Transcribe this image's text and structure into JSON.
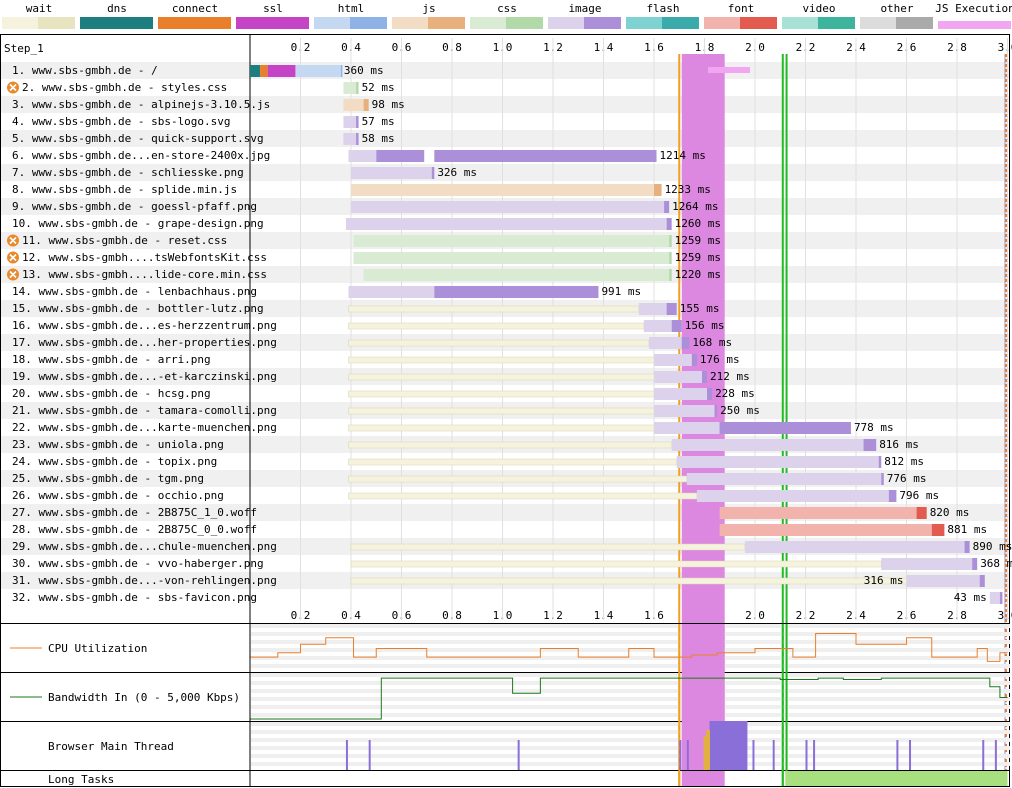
{
  "chart_data": {
    "type": "waterfall",
    "step_label": "Step_1",
    "axis": {
      "min": 0,
      "max": 3.0,
      "ticks": [
        0.2,
        0.4,
        0.6,
        0.8,
        1.0,
        1.2,
        1.4,
        1.6,
        1.8,
        2.0,
        2.2,
        2.4,
        2.6,
        2.8,
        3.0
      ],
      "tick_labels": [
        "0.2",
        "0.4",
        "0.6",
        "0.8",
        "1.0",
        "1.2",
        "1.4",
        "1.6",
        "1.8",
        "2.0",
        "2.2",
        "2.4",
        "2.6",
        "2.8",
        "3.0"
      ]
    },
    "legend": [
      {
        "label": "wait",
        "light": "#f5f3dd",
        "dark": "#e8e4c0"
      },
      {
        "label": "dns",
        "light": "#1d7e80",
        "dark": "#1d7e80"
      },
      {
        "label": "connect",
        "light": "#e97f2a",
        "dark": "#e97f2a"
      },
      {
        "label": "ssl",
        "light": "#c544c5",
        "dark": "#c544c5"
      },
      {
        "label": "html",
        "light": "#c5d8f2",
        "dark": "#8fb2e6"
      },
      {
        "label": "js",
        "light": "#f2dcc4",
        "dark": "#e7b07c"
      },
      {
        "label": "css",
        "light": "#d9ebd3",
        "dark": "#b2d9a8"
      },
      {
        "label": "image",
        "light": "#dcd2ec",
        "dark": "#ab8fd8"
      },
      {
        "label": "flash",
        "light": "#7ed2d2",
        "dark": "#3aaaaa"
      },
      {
        "label": "font",
        "light": "#f2b3ad",
        "dark": "#e35a4e"
      },
      {
        "label": "video",
        "light": "#a8e2d6",
        "dark": "#3db59d"
      },
      {
        "label": "other",
        "light": "#dcdcdc",
        "dark": "#aaaaaa"
      },
      {
        "label": "JS Execution",
        "light": "#f2a6f2",
        "dark": "#f2a6f2"
      }
    ],
    "markers": {
      "js_execution_block": [
        1.71,
        1.88
      ],
      "first_paint": 1.7,
      "dom_content_loaded": [
        2.11,
        2.125
      ],
      "onload": 2.99
    },
    "requests": [
      {
        "label": "1. www.sbs-gmbh.de - /",
        "type": "html",
        "start": 0.0,
        "ttfb": 0.36,
        "end": 0.36,
        "time": "360 ms",
        "blocking": false,
        "pre": [
          [
            "dns",
            0.0,
            0.04
          ],
          [
            "connect",
            0.04,
            0.07
          ],
          [
            "ssl",
            0.07,
            0.18
          ]
        ]
      },
      {
        "label": "2. www.sbs-gmbh.de - styles.css",
        "type": "css",
        "start": 0.37,
        "ttfb": 0.42,
        "end": 0.43,
        "time": "52 ms",
        "blocking": true
      },
      {
        "label": "3. www.sbs-gmbh.de - alpinejs-3.10.5.js",
        "type": "js",
        "start": 0.37,
        "ttfb": 0.45,
        "end": 0.47,
        "time": "98 ms",
        "blocking": false
      },
      {
        "label": "4. www.sbs-gmbh.de - sbs-logo.svg",
        "type": "image",
        "start": 0.37,
        "ttfb": 0.42,
        "end": 0.43,
        "time": "57 ms",
        "blocking": false
      },
      {
        "label": "5. www.sbs-gmbh.de - quick-support.svg",
        "type": "image",
        "start": 0.37,
        "ttfb": 0.42,
        "end": 0.43,
        "time": "58 ms",
        "blocking": false
      },
      {
        "label": "6. www.sbs-gmbh.de...en-store-2400x.jpg",
        "type": "image",
        "start": 0.39,
        "ttfb": 0.5,
        "end": 1.61,
        "time": "1214 ms",
        "blocking": false,
        "chunks": [
          [
            0.5,
            0.69
          ],
          [
            0.73,
            1.61
          ]
        ]
      },
      {
        "label": "7. www.sbs-gmbh.de - schliesske.png",
        "type": "image",
        "start": 0.4,
        "ttfb": 0.72,
        "end": 0.73,
        "time": "326 ms",
        "blocking": false
      },
      {
        "label": "8. www.sbs-gmbh.de - splide.min.js",
        "type": "js",
        "start": 0.4,
        "ttfb": 1.6,
        "end": 1.63,
        "time": "1233 ms",
        "blocking": false
      },
      {
        "label": "9. www.sbs-gmbh.de - goessl-pfaff.png",
        "type": "image",
        "start": 0.4,
        "ttfb": 1.64,
        "end": 1.66,
        "time": "1264 ms",
        "blocking": false
      },
      {
        "label": "10. www.sbs-gmbh.de - grape-design.png",
        "type": "image",
        "start": 0.38,
        "ttfb": 1.65,
        "end": 1.67,
        "time": "1260 ms",
        "blocking": false
      },
      {
        "label": "11. www.sbs-gmbh.de - reset.css",
        "type": "css",
        "start": 0.41,
        "ttfb": 1.66,
        "end": 1.67,
        "time": "1259 ms",
        "blocking": true
      },
      {
        "label": "12. www.sbs-gmbh....tsWebfontsKit.css",
        "type": "css",
        "start": 0.41,
        "ttfb": 1.66,
        "end": 1.67,
        "time": "1259 ms",
        "blocking": true
      },
      {
        "label": "13. www.sbs-gmbh....lide-core.min.css",
        "type": "css",
        "start": 0.45,
        "ttfb": 1.66,
        "end": 1.67,
        "time": "1220 ms",
        "blocking": true
      },
      {
        "label": "14. www.sbs-gmbh.de - lenbachhaus.png",
        "type": "image",
        "start": 0.39,
        "ttfb": 0.73,
        "end": 1.38,
        "time": "991 ms",
        "blocking": false
      },
      {
        "label": "15. www.sbs-gmbh.de - bottler-lutz.png",
        "type": "image",
        "start": 0.39,
        "ttfb": 1.65,
        "end": 1.69,
        "time": "155 ms",
        "blocking": false,
        "wait_from": 1.54
      },
      {
        "label": "16. www.sbs-gmbh.de...es-herzzentrum.png",
        "type": "image",
        "start": 0.39,
        "ttfb": 1.67,
        "end": 1.71,
        "time": "156 ms",
        "blocking": false,
        "wait_from": 1.56
      },
      {
        "label": "17. www.sbs-gmbh.de...her-properties.png",
        "type": "image",
        "start": 0.39,
        "ttfb": 1.71,
        "end": 1.74,
        "time": "168 ms",
        "blocking": false,
        "wait_from": 1.58
      },
      {
        "label": "18. www.sbs-gmbh.de - arri.png",
        "type": "image",
        "start": 0.39,
        "ttfb": 1.75,
        "end": 1.77,
        "time": "176 ms",
        "blocking": false,
        "wait_from": 1.6
      },
      {
        "label": "19. www.sbs-gmbh.de...-et-karczinski.png",
        "type": "image",
        "start": 0.39,
        "ttfb": 1.79,
        "end": 1.81,
        "time": "212 ms",
        "blocking": false,
        "wait_from": 1.6
      },
      {
        "label": "20. www.sbs-gmbh.de - hcsg.png",
        "type": "image",
        "start": 0.39,
        "ttfb": 1.81,
        "end": 1.83,
        "time": "228 ms",
        "blocking": false,
        "wait_from": 1.6
      },
      {
        "label": "21. www.sbs-gmbh.de - tamara-comolli.png",
        "type": "image",
        "start": 0.39,
        "ttfb": 1.84,
        "end": 1.85,
        "time": "250 ms",
        "blocking": false,
        "wait_from": 1.6
      },
      {
        "label": "22. www.sbs-gmbh.de...karte-muenchen.png",
        "type": "image",
        "start": 0.39,
        "ttfb": 1.86,
        "end": 2.38,
        "time": "778 ms",
        "blocking": false,
        "wait_from": 1.6
      },
      {
        "label": "23. www.sbs-gmbh.de - uniola.png",
        "type": "image",
        "start": 0.39,
        "ttfb": 2.43,
        "end": 2.48,
        "time": "816 ms",
        "blocking": false,
        "wait_from": 1.67
      },
      {
        "label": "24. www.sbs-gmbh.de - topix.png",
        "type": "image",
        "start": 0.39,
        "ttfb": 2.49,
        "end": 2.5,
        "time": "812 ms",
        "blocking": false,
        "wait_from": 1.69
      },
      {
        "label": "25. www.sbs-gmbh.de - tgm.png",
        "type": "image",
        "start": 0.39,
        "ttfb": 2.5,
        "end": 2.51,
        "time": "776 ms",
        "blocking": false,
        "wait_from": 1.73
      },
      {
        "label": "26. www.sbs-gmbh.de - occhio.png",
        "type": "image",
        "start": 0.39,
        "ttfb": 2.53,
        "end": 2.56,
        "time": "796 ms",
        "blocking": false,
        "wait_from": 1.77
      },
      {
        "label": "27. www.sbs-gmbh.de - 2B875C_1_0.woff",
        "type": "font",
        "start": 1.86,
        "ttfb": 2.64,
        "end": 2.68,
        "time": "820 ms",
        "blocking": false
      },
      {
        "label": "28. www.sbs-gmbh.de - 2B875C_0_0.woff",
        "type": "font",
        "start": 1.86,
        "ttfb": 2.7,
        "end": 2.75,
        "time": "881 ms",
        "blocking": false
      },
      {
        "label": "29. www.sbs-gmbh.de...chule-muenchen.png",
        "type": "image",
        "start": 0.4,
        "ttfb": 2.83,
        "end": 2.85,
        "time": "890 ms",
        "blocking": false,
        "wait_from": 1.96
      },
      {
        "label": "30. www.sbs-gmbh.de - vvo-haberger.png",
        "type": "image",
        "start": 0.4,
        "ttfb": 2.86,
        "end": 2.88,
        "time": "368 ms",
        "blocking": false,
        "wait_from": 2.5
      },
      {
        "label": "31. www.sbs-gmbh.de...-von-rehlingen.png",
        "type": "image",
        "start": 0.4,
        "ttfb": 2.89,
        "end": 2.91,
        "time": "316 ms",
        "blocking": false,
        "wait_from": 2.6,
        "label_left": true
      },
      {
        "label": "32. www.sbs-gmbh.de - sbs-favicon.png",
        "type": "image",
        "start": 2.93,
        "ttfb": 2.97,
        "end": 2.98,
        "time": "43 ms",
        "blocking": false,
        "label_left": true
      }
    ],
    "panels": [
      {
        "name": "CPU Utilization",
        "color": "#e97f2a"
      },
      {
        "name": "Bandwidth In (0 - 5,000 Kbps)",
        "color": "#1a7a1a"
      },
      {
        "name": "Browser Main Thread",
        "color": "#8a6fd8"
      },
      {
        "name": "Long Tasks",
        "color": "#a8e080"
      }
    ],
    "cpu_series": {
      "x": [
        0.0,
        0.11,
        0.2,
        0.3,
        0.41,
        0.5,
        0.6,
        0.7,
        0.8,
        1.0,
        1.15,
        1.25,
        1.3,
        1.4,
        1.5,
        1.55,
        1.6,
        1.7,
        1.75,
        1.85,
        2.0,
        2.1,
        2.15,
        2.2,
        2.24,
        2.3,
        2.4,
        2.5,
        2.6,
        2.7,
        2.8,
        2.88,
        2.92,
        2.97,
        3.0
      ],
      "y": [
        0.3,
        0.4,
        0.6,
        0.75,
        0.3,
        0.5,
        0.5,
        0.3,
        0.3,
        0.3,
        0.5,
        0.5,
        0.3,
        0.3,
        0.5,
        0.5,
        0.3,
        0.3,
        0.35,
        0.4,
        0.5,
        0.5,
        0.3,
        0.3,
        0.85,
        0.85,
        0.6,
        0.6,
        0.75,
        0.3,
        0.3,
        0.5,
        0.2,
        0.4,
        0.4
      ]
    },
    "bandwidth_series": {
      "x": [
        0.0,
        0.5,
        0.52,
        1.03,
        1.04,
        1.14,
        1.15,
        1.2,
        1.7,
        2.0,
        2.1,
        2.25,
        2.35,
        2.5,
        2.9,
        2.93,
        2.97,
        3.0
      ],
      "y": [
        0.0,
        0.0,
        0.95,
        0.95,
        0.6,
        0.6,
        0.95,
        0.95,
        0.95,
        0.95,
        0.92,
        0.95,
        0.92,
        0.95,
        0.95,
        0.75,
        0.5,
        0.5
      ]
    },
    "main_thread": {
      "big_block": [
        1.82,
        1.97
      ],
      "spikes": [
        0.38,
        0.47,
        1.06,
        1.7,
        1.73,
        1.99,
        2.07,
        2.2,
        2.23,
        2.56,
        2.61,
        2.9,
        2.95
      ]
    },
    "long_tasks": [
      [
        2.12,
        3.0
      ]
    ]
  }
}
